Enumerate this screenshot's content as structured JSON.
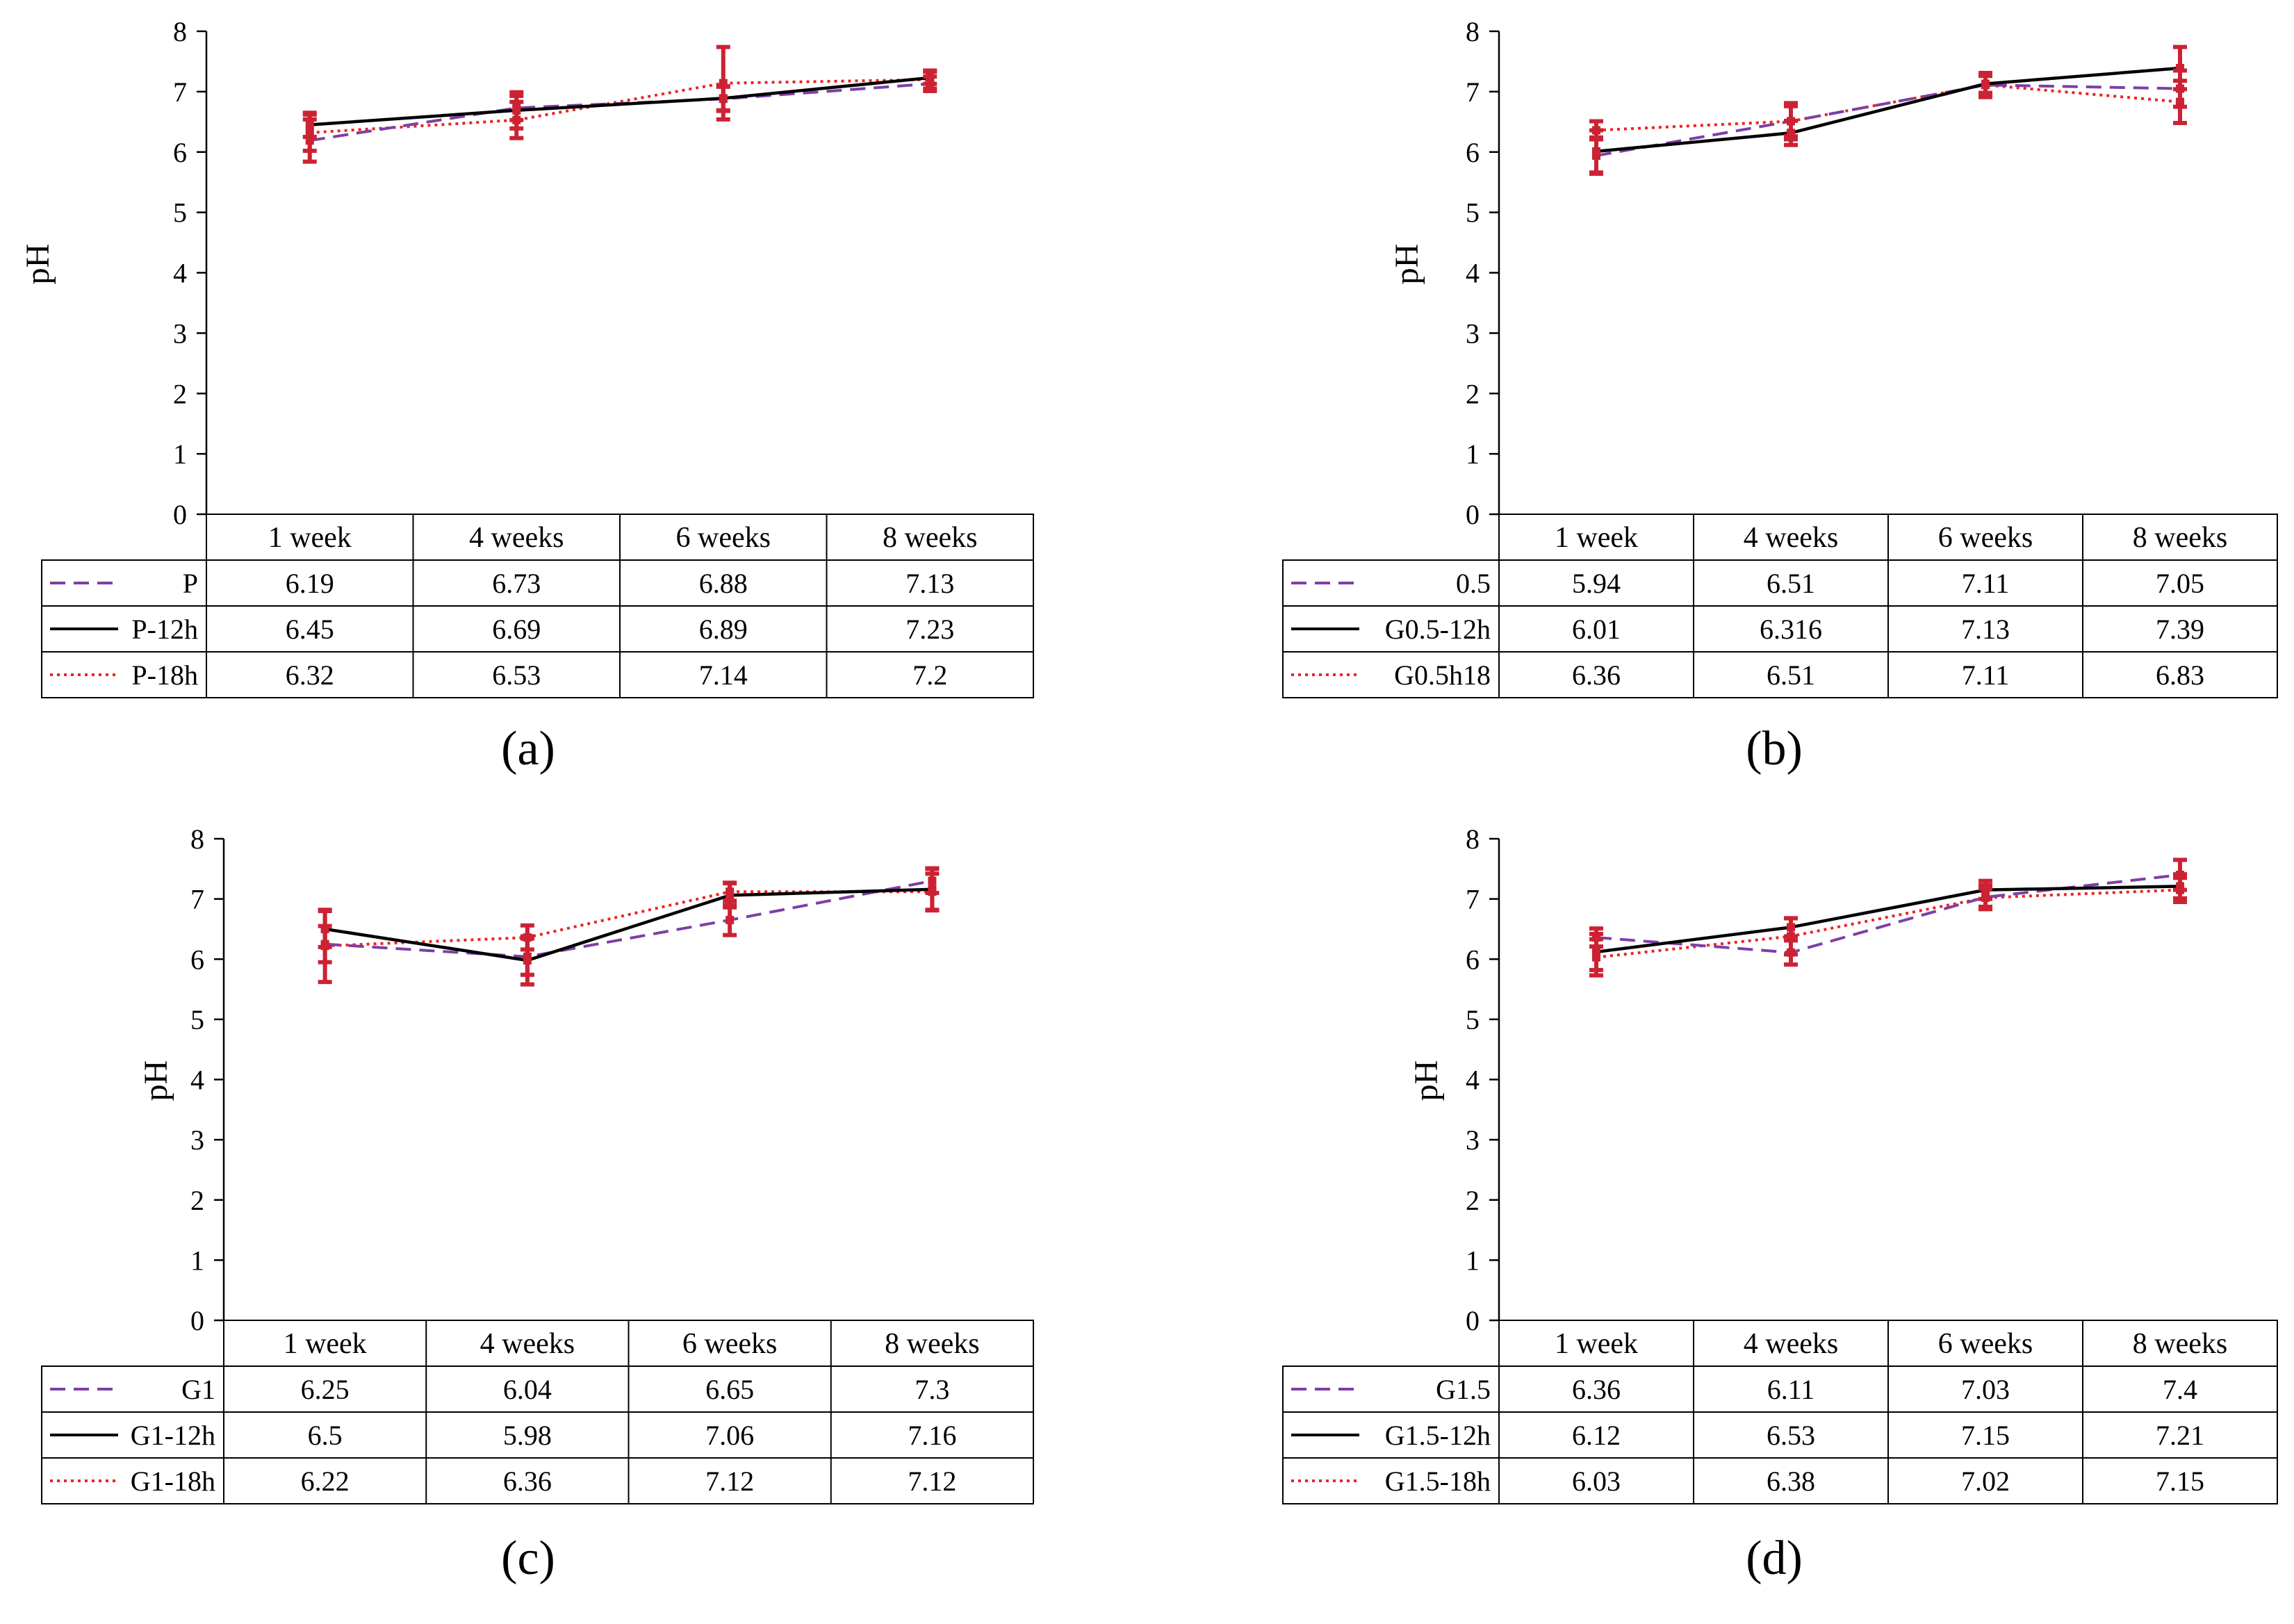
{
  "figure": {
    "colors": {
      "series_a": "#7d3fa6",
      "series_b": "#000000",
      "series_c": "#ee2222",
      "errorbar": "#cc2233",
      "grid": "#000000"
    }
  },
  "chart_data": [
    {
      "panel": "(a)",
      "type": "line",
      "ylabel": "pH",
      "ylim": [
        0,
        8
      ],
      "yticks": [
        "0",
        "1",
        "2",
        "3",
        "4",
        "5",
        "6",
        "7",
        "8"
      ],
      "categories": [
        "1 week",
        "4 weeks",
        "6 weeks",
        "8 weeks"
      ],
      "series": [
        {
          "name": "P",
          "style": "dashed",
          "values": [
            6.19,
            6.73,
            6.88,
            7.13
          ],
          "labels": [
            "6.19",
            "6.73",
            "6.88",
            "7.13"
          ],
          "errors": [
            0.35,
            0.2,
            0.2,
            0.12
          ]
        },
        {
          "name": "P-12h",
          "style": "solid",
          "values": [
            6.45,
            6.69,
            6.89,
            7.23
          ],
          "labels": [
            "6.45",
            "6.69",
            "6.89",
            "7.23"
          ],
          "errors": [
            0.2,
            0.3,
            0.2,
            0.1
          ]
        },
        {
          "name": "P-18h",
          "style": "dotted",
          "values": [
            6.32,
            6.53,
            7.14,
            7.2
          ],
          "labels": [
            "6.32",
            "6.53",
            "7.14",
            "7.2"
          ],
          "errors": [
            0.3,
            0.3,
            0.6,
            0.15
          ]
        }
      ]
    },
    {
      "panel": "(b)",
      "type": "line",
      "ylabel": "pH",
      "ylim": [
        0,
        8
      ],
      "yticks": [
        "0",
        "1",
        "2",
        "3",
        "4",
        "5",
        "6",
        "7",
        "8"
      ],
      "categories": [
        "1 week",
        "4 weeks",
        "6 weeks",
        "8 weeks"
      ],
      "series": [
        {
          "name": "0.5",
          "style": "dashed",
          "values": [
            5.94,
            6.51,
            7.11,
            7.05
          ],
          "labels": [
            "5.94",
            "6.51",
            "7.11",
            "7.05"
          ],
          "errors": [
            0.3,
            0.25,
            0.15,
            0.3
          ]
        },
        {
          "name": "G0.5-12h",
          "style": "solid",
          "values": [
            6.01,
            6.316,
            7.13,
            7.39
          ],
          "labels": [
            "6.01",
            "6.316",
            "7.13",
            "7.39"
          ],
          "errors": [
            0.35,
            0.2,
            0.15,
            0.35
          ]
        },
        {
          "name": "G0.5h18",
          "style": "dotted",
          "values": [
            6.36,
            6.51,
            7.11,
            6.83
          ],
          "labels": [
            "6.36",
            "6.51",
            "7.11",
            "6.83"
          ],
          "errors": [
            0.15,
            0.3,
            0.2,
            0.35
          ]
        }
      ]
    },
    {
      "panel": "(c)",
      "type": "line",
      "ylabel": "pH",
      "ylim": [
        0,
        8
      ],
      "yticks": [
        "0",
        "1",
        "2",
        "3",
        "4",
        "5",
        "6",
        "7",
        "8"
      ],
      "categories": [
        "1 week",
        "4 weeks",
        "6 weeks",
        "8 weeks"
      ],
      "series": [
        {
          "name": "G1",
          "style": "dashed",
          "values": [
            6.25,
            6.04,
            6.65,
            7.3
          ],
          "labels": [
            "6.25",
            "6.04",
            "6.65",
            "7.3"
          ],
          "errors": [
            0.3,
            0.3,
            0.25,
            0.2
          ]
        },
        {
          "name": "G1-12h",
          "style": "solid",
          "values": [
            6.5,
            5.98,
            7.06,
            7.16
          ],
          "labels": [
            "6.5",
            "5.98",
            "7.06",
            "7.16"
          ],
          "errors": [
            0.3,
            0.4,
            0.2,
            0.35
          ]
        },
        {
          "name": "G1-18h",
          "style": "dotted",
          "values": [
            6.22,
            6.36,
            7.12,
            7.12
          ],
          "labels": [
            "6.22",
            "6.36",
            "7.12",
            "7.12"
          ],
          "errors": [
            0.6,
            0.2,
            0.15,
            0.3
          ]
        }
      ]
    },
    {
      "panel": "(d)",
      "type": "line",
      "ylabel": "pH",
      "ylim": [
        0,
        8
      ],
      "yticks": [
        "0",
        "1",
        "2",
        "3",
        "4",
        "5",
        "6",
        "7",
        "8"
      ],
      "categories": [
        "1 week",
        "4 weeks",
        "6 weeks",
        "8 weeks"
      ],
      "series": [
        {
          "name": "G1.5",
          "style": "dashed",
          "values": [
            6.36,
            6.11,
            7.03,
            7.4
          ],
          "labels": [
            "6.36",
            "6.11",
            "7.03",
            "7.4"
          ],
          "errors": [
            0.15,
            0.2,
            0.2,
            0.25
          ]
        },
        {
          "name": "G1.5-12h",
          "style": "solid",
          "values": [
            6.12,
            6.53,
            7.15,
            7.21
          ],
          "labels": [
            "6.12",
            "6.53",
            "7.15",
            "7.21"
          ],
          "errors": [
            0.3,
            0.15,
            0.15,
            0.2
          ]
        },
        {
          "name": "G1.5-18h",
          "style": "dotted",
          "values": [
            6.03,
            6.38,
            7.02,
            7.15
          ],
          "labels": [
            "6.03",
            "6.38",
            "7.02",
            "7.15"
          ],
          "errors": [
            0.3,
            0.3,
            0.15,
            0.2
          ]
        }
      ]
    }
  ]
}
